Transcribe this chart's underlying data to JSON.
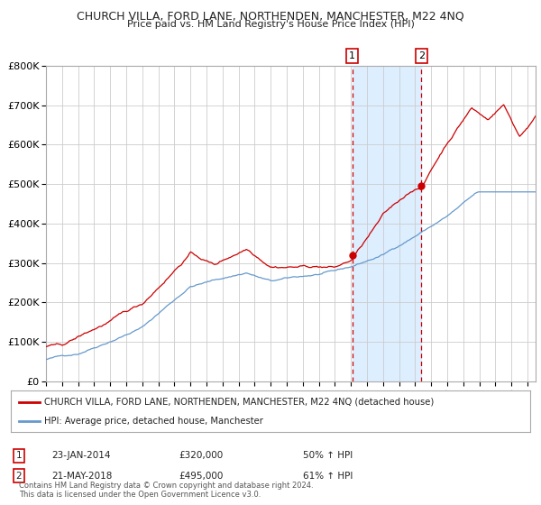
{
  "title": "CHURCH VILLA, FORD LANE, NORTHENDEN, MANCHESTER, M22 4NQ",
  "subtitle": "Price paid vs. HM Land Registry's House Price Index (HPI)",
  "legend_label_red": "CHURCH VILLA, FORD LANE, NORTHENDEN, MANCHESTER, M22 4NQ (detached house)",
  "legend_label_blue": "HPI: Average price, detached house, Manchester",
  "annotation1_label": "1",
  "annotation1_date": "23-JAN-2014",
  "annotation1_price": "£320,000",
  "annotation1_hpi": "50% ↑ HPI",
  "annotation1_year": 2014.07,
  "annotation1_value": 320000,
  "annotation2_label": "2",
  "annotation2_date": "21-MAY-2018",
  "annotation2_price": "£495,000",
  "annotation2_hpi": "61% ↑ HPI",
  "annotation2_year": 2018.38,
  "annotation2_value": 495000,
  "red_color": "#cc0000",
  "blue_color": "#6699cc",
  "shade_color": "#ddeeff",
  "grid_color": "#cccccc",
  "background_color": "#ffffff",
  "ylim": [
    0,
    800000
  ],
  "xlim_start": 1995.0,
  "xlim_end": 2025.5,
  "footer_text": "Contains HM Land Registry data © Crown copyright and database right 2024.\nThis data is licensed under the Open Government Licence v3.0."
}
